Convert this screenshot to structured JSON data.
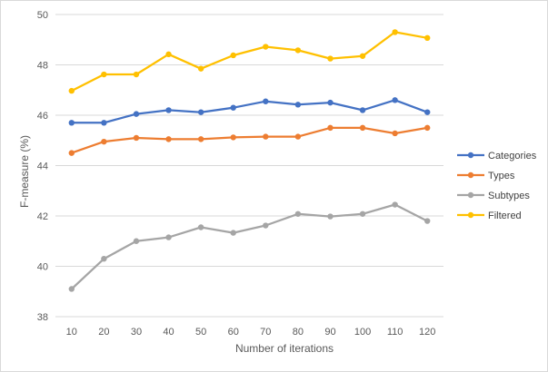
{
  "chart_data": {
    "type": "line",
    "title": "",
    "xlabel": "Number of iterations",
    "ylabel": "F-measure (%)",
    "x": [
      10,
      20,
      30,
      40,
      50,
      60,
      70,
      80,
      90,
      100,
      110,
      120
    ],
    "ylim": [
      38,
      50
    ],
    "yticks": [
      38,
      40,
      42,
      44,
      46,
      48,
      50
    ],
    "grid": true,
    "legend_position": "right",
    "series": [
      {
        "name": "Categories",
        "color": "#4472c4",
        "values": [
          45.7,
          45.7,
          46.05,
          46.2,
          46.12,
          46.3,
          46.55,
          46.42,
          46.5,
          46.2,
          46.6,
          46.12
        ]
      },
      {
        "name": "Types",
        "color": "#ed7d31",
        "values": [
          44.5,
          44.95,
          45.1,
          45.05,
          45.05,
          45.12,
          45.15,
          45.15,
          45.5,
          45.5,
          45.28,
          45.5
        ]
      },
      {
        "name": "Subtypes",
        "color": "#a5a5a5",
        "values": [
          39.1,
          40.3,
          41.0,
          41.15,
          41.55,
          41.33,
          41.62,
          42.08,
          41.98,
          42.08,
          42.45,
          41.8
        ]
      },
      {
        "name": "Filtered",
        "color": "#ffc000",
        "values": [
          46.97,
          47.62,
          47.62,
          48.42,
          47.85,
          48.38,
          48.72,
          48.58,
          48.25,
          48.35,
          49.3,
          49.07
        ]
      }
    ]
  }
}
